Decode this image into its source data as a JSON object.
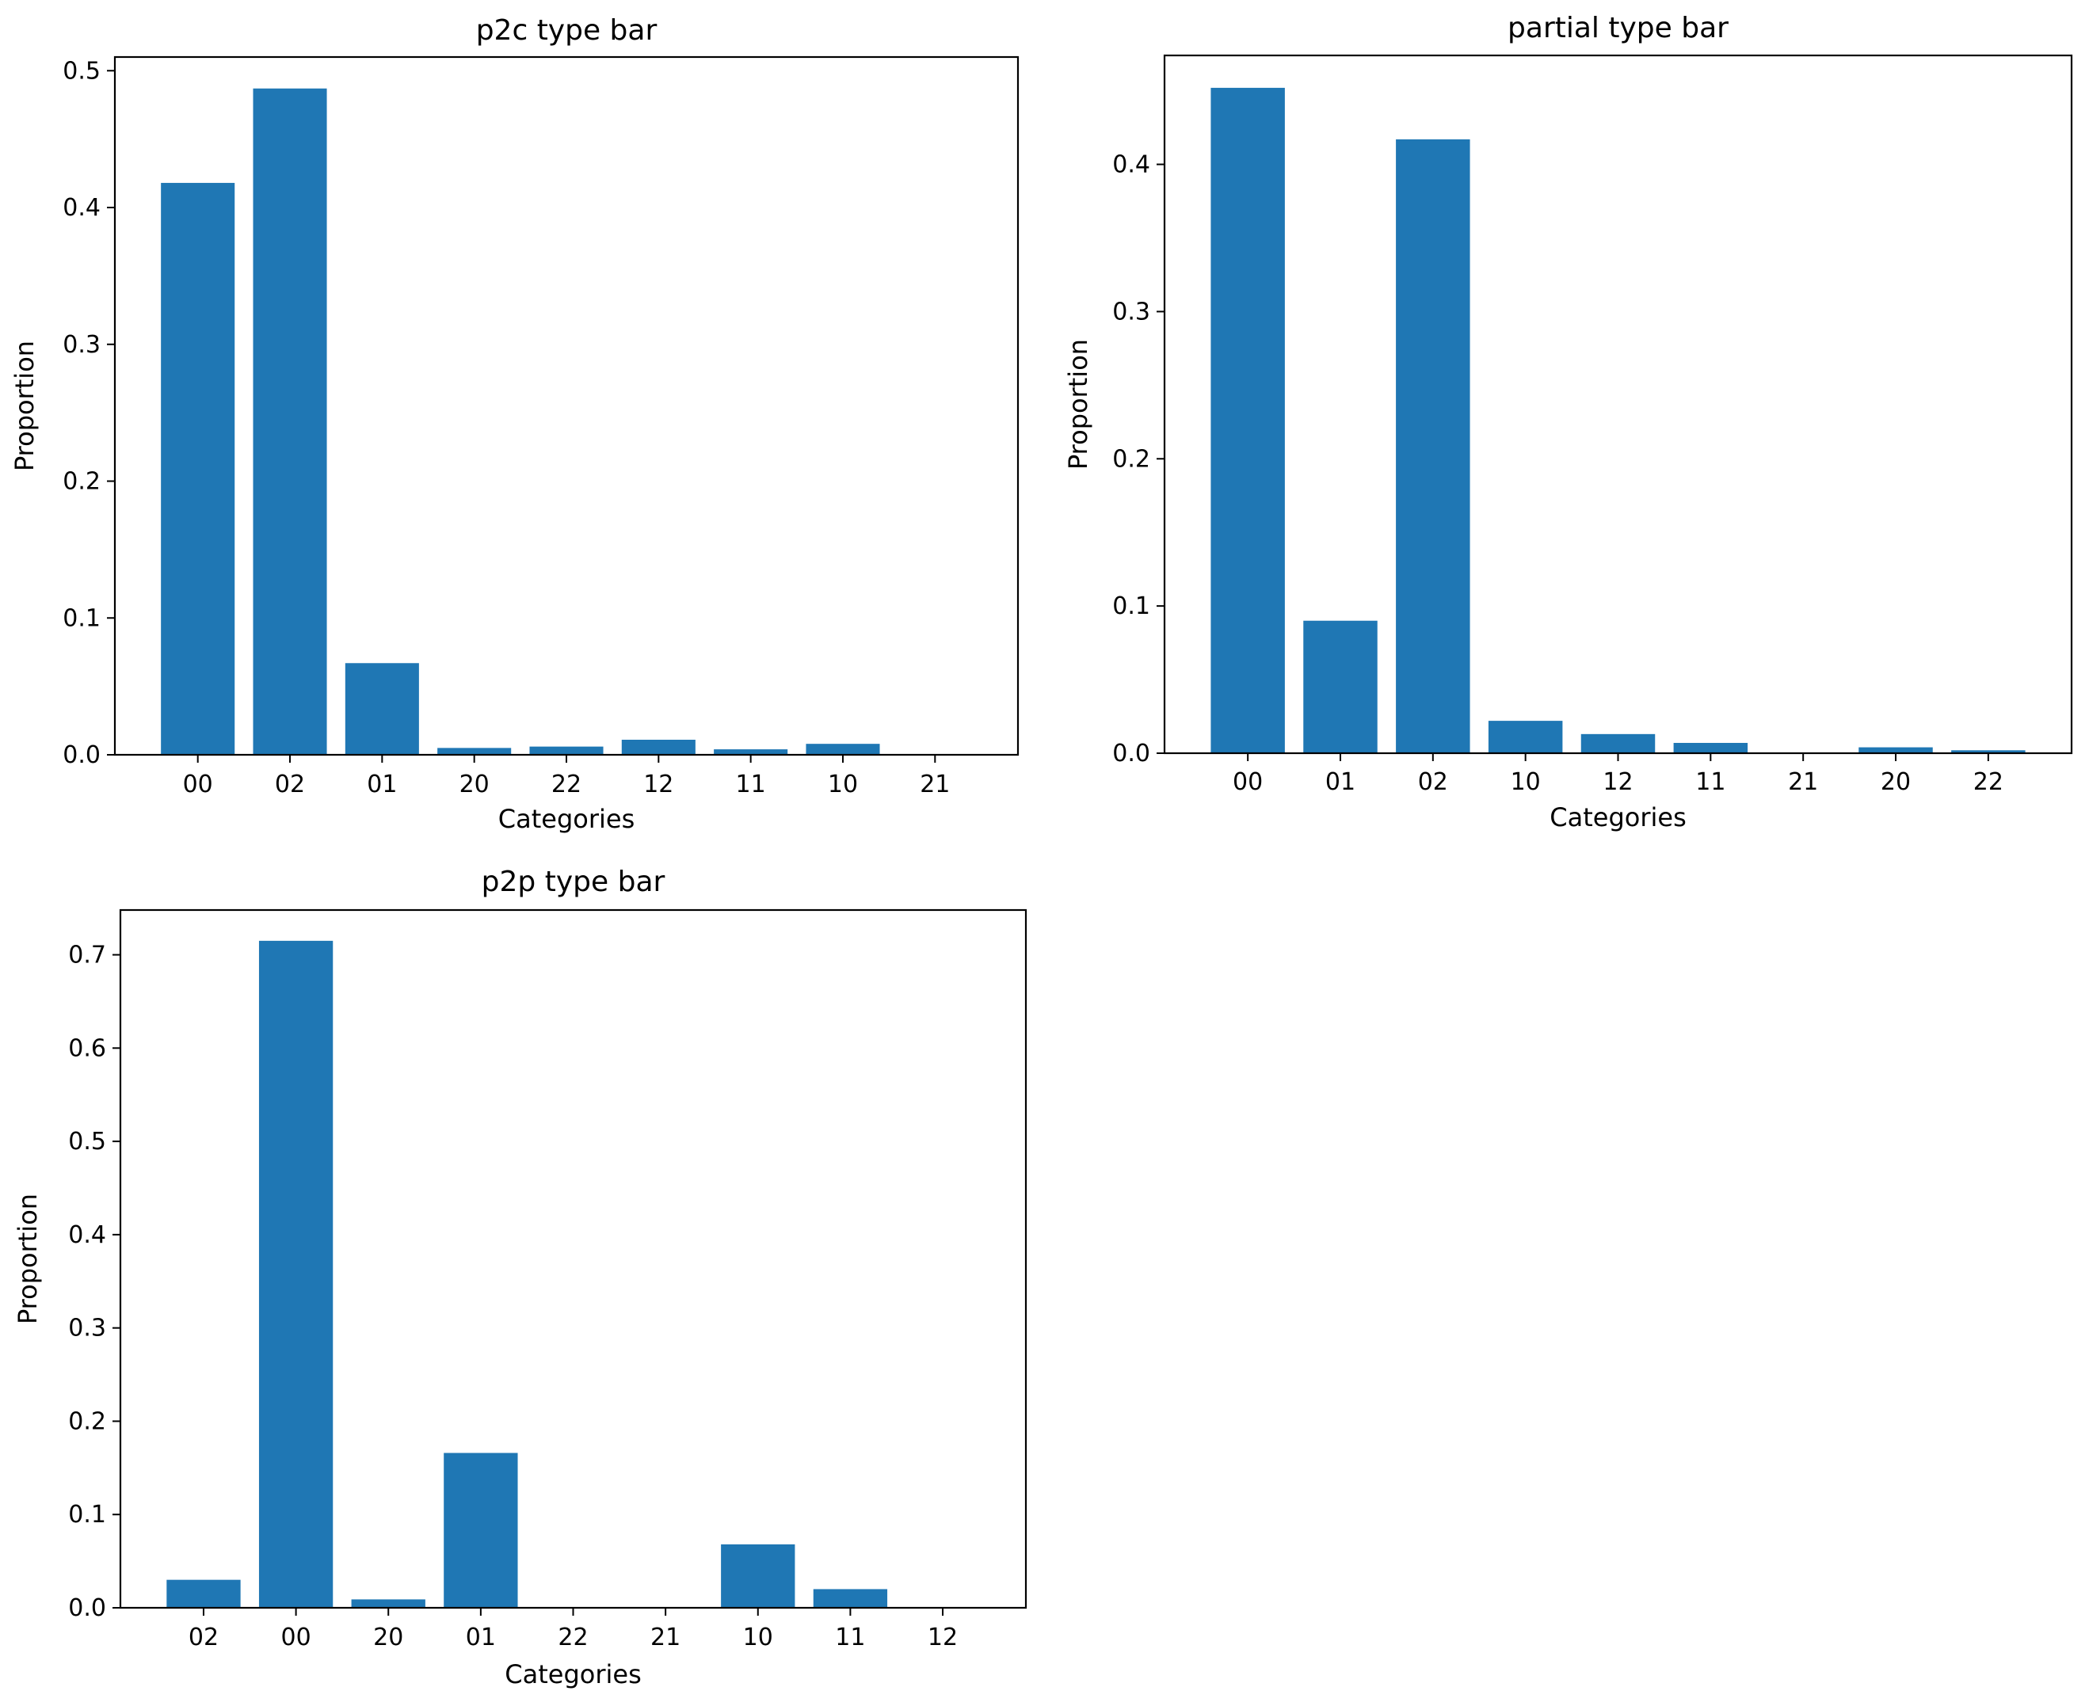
{
  "chart_data": [
    {
      "type": "bar",
      "title": "p2c type bar",
      "xlabel": "Categories",
      "ylabel": "Proportion",
      "categories": [
        "00",
        "02",
        "01",
        "20",
        "22",
        "12",
        "11",
        "10",
        "21"
      ],
      "values": [
        0.418,
        0.487,
        0.067,
        0.005,
        0.006,
        0.011,
        0.004,
        0.008,
        0.0
      ],
      "ylim": [
        0,
        0.51
      ],
      "yticks": [
        0.0,
        0.1,
        0.2,
        0.3,
        0.4,
        0.5
      ],
      "ytick_labels": [
        "0.0",
        "0.1",
        "0.2",
        "0.3",
        "0.4",
        "0.5"
      ],
      "bar_color": "#1f77b4"
    },
    {
      "type": "bar",
      "title": "partial type bar",
      "xlabel": "Categories",
      "ylabel": "Proportion",
      "categories": [
        "00",
        "01",
        "02",
        "10",
        "12",
        "11",
        "21",
        "20",
        "22"
      ],
      "values": [
        0.452,
        0.09,
        0.417,
        0.022,
        0.013,
        0.007,
        0.0,
        0.004,
        0.002
      ],
      "ylim": [
        0,
        0.474
      ],
      "yticks": [
        0.0,
        0.1,
        0.2,
        0.3,
        0.4
      ],
      "ytick_labels": [
        "0.0",
        "0.1",
        "0.2",
        "0.3",
        "0.4"
      ],
      "bar_color": "#1f77b4"
    },
    {
      "type": "bar",
      "title": "p2p type bar",
      "xlabel": "Categories",
      "ylabel": "Proportion",
      "categories": [
        "02",
        "00",
        "20",
        "01",
        "22",
        "21",
        "10",
        "11",
        "12"
      ],
      "values": [
        0.03,
        0.715,
        0.009,
        0.166,
        0.0,
        0.0,
        0.068,
        0.02,
        0.0
      ],
      "ylim": [
        0,
        0.748
      ],
      "yticks": [
        0.0,
        0.1,
        0.2,
        0.3,
        0.4,
        0.5,
        0.6,
        0.7
      ],
      "ytick_labels": [
        "0.0",
        "0.1",
        "0.2",
        "0.3",
        "0.4",
        "0.5",
        "0.6",
        "0.7"
      ],
      "bar_color": "#1f77b4"
    }
  ]
}
